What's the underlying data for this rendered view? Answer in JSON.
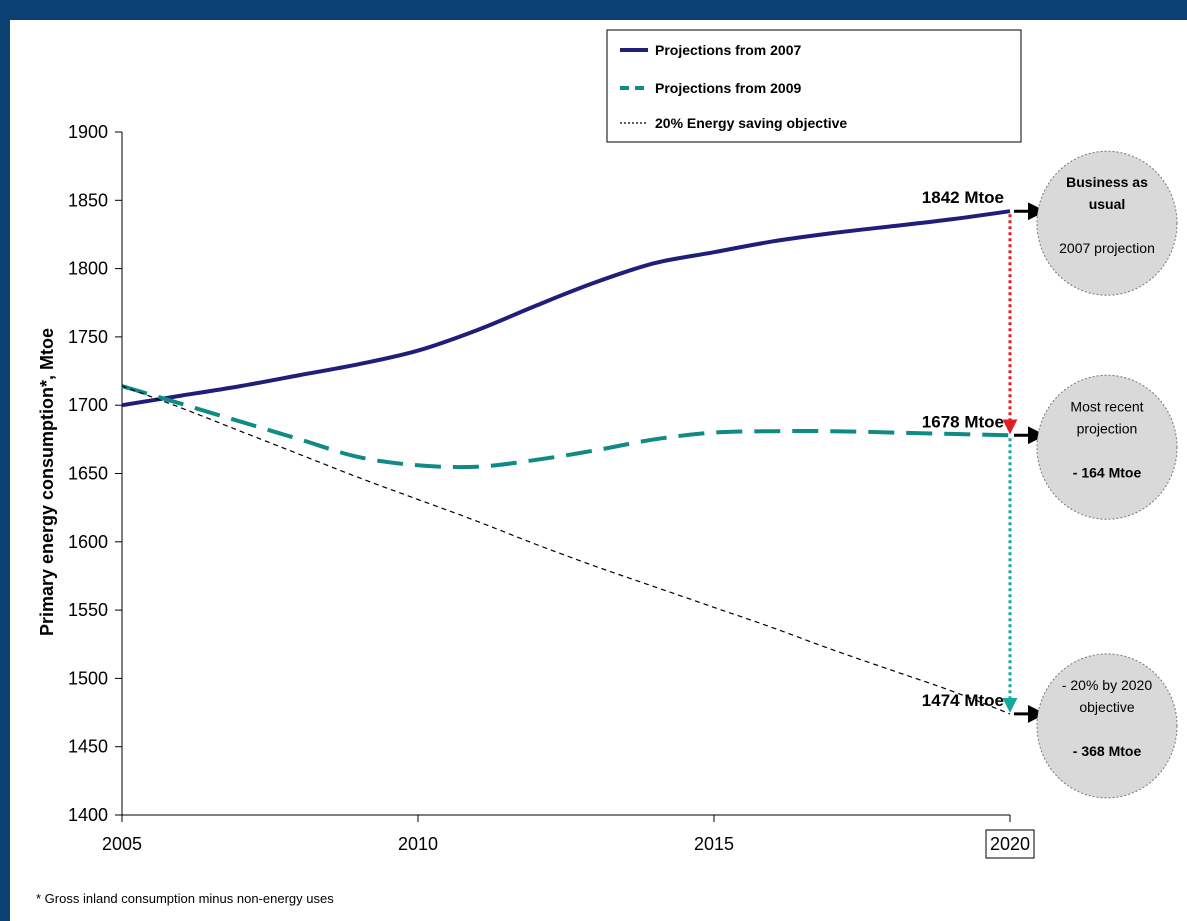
{
  "chart_data": {
    "type": "line",
    "title": "",
    "xlabel": "",
    "ylabel": "Primary energy consumption*, Mtoe",
    "xlim": [
      2005,
      2020
    ],
    "ylim": [
      1400,
      1900
    ],
    "x_ticks": [
      "2005",
      "2010",
      "2015",
      "2020"
    ],
    "y_ticks": [
      "1400",
      "1450",
      "1500",
      "1550",
      "1600",
      "1650",
      "1700",
      "1750",
      "1800",
      "1850",
      "1900"
    ],
    "legend_position": "top-right",
    "series": [
      {
        "name": "Projections from 2007",
        "style": "solid",
        "color": "#1f1f7a",
        "x": [
          2005,
          2006,
          2007,
          2008,
          2009,
          2010,
          2011,
          2012,
          2013,
          2014,
          2015,
          2016,
          2017,
          2018,
          2019,
          2020
        ],
        "values": [
          1700,
          1707,
          1714,
          1722,
          1730,
          1740,
          1755,
          1773,
          1790,
          1804,
          1812,
          1820,
          1826,
          1831,
          1836,
          1842
        ]
      },
      {
        "name": "Projections from 2009",
        "style": "dashed",
        "color": "#0f8a84",
        "x": [
          2005,
          2006,
          2007,
          2008,
          2009,
          2010,
          2011,
          2012,
          2013,
          2014,
          2015,
          2016,
          2017,
          2018,
          2019,
          2020
        ],
        "values": [
          1714,
          1701,
          1688,
          1675,
          1662,
          1656,
          1655,
          1660,
          1667,
          1675,
          1680,
          1681,
          1681,
          1680,
          1679,
          1678
        ]
      },
      {
        "name": "20% Energy saving objective",
        "style": "dotted",
        "color": "#000000",
        "x": [
          2005,
          2006,
          2007,
          2008,
          2009,
          2010,
          2011,
          2012,
          2013,
          2014,
          2015,
          2016,
          2017,
          2018,
          2019,
          2020
        ],
        "values": [
          1714,
          1698,
          1681,
          1664,
          1647,
          1631,
          1615,
          1598,
          1582,
          1567,
          1552,
          1537,
          1521,
          1506,
          1491,
          1474
        ]
      }
    ],
    "annotations": [
      {
        "text": "1842 Mtoe",
        "x": 2020,
        "y": 1842
      },
      {
        "text": "1678 Mtoe",
        "x": 2020,
        "y": 1678
      },
      {
        "text": "1474 Mtoe",
        "x": 2020,
        "y": 1474
      }
    ],
    "outcomes": [
      {
        "y": 1842,
        "lines": [
          "Business as",
          "usual",
          "",
          "2007 projection"
        ],
        "bold": [
          true,
          true,
          false,
          false
        ]
      },
      {
        "y": 1678,
        "lines": [
          "Most recent",
          "projection",
          "",
          "- 164 Mtoe"
        ],
        "bold": [
          false,
          false,
          false,
          true
        ]
      },
      {
        "y": 1474,
        "lines": [
          "- 20% by 2020",
          "objective",
          "",
          "- 368 Mtoe"
        ],
        "bold": [
          false,
          false,
          false,
          true
        ]
      }
    ],
    "footnote": "* Gross inland consumption minus non-energy uses",
    "colors": {
      "arrow_red": "#e02020",
      "arrow_teal": "#14a8a0",
      "circle_fill": "#d9d9d9"
    }
  }
}
